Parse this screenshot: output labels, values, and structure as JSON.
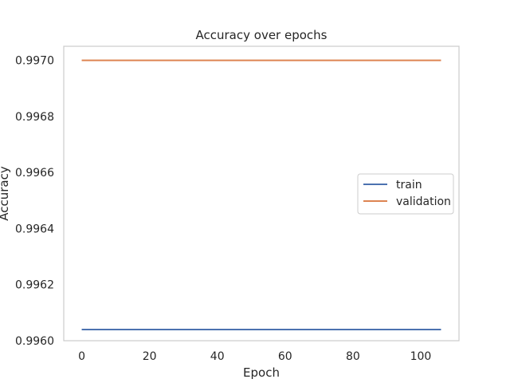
{
  "chart_data": {
    "type": "line",
    "title": "Accuracy over epochs",
    "xlabel": "Epoch",
    "ylabel": "Accuracy",
    "xlim": [
      -5.3,
      111.3
    ],
    "ylim": [
      0.996,
      0.99705
    ],
    "xticks": [
      0,
      20,
      40,
      60,
      80,
      100
    ],
    "xtick_labels": [
      "0",
      "20",
      "40",
      "60",
      "80",
      "100"
    ],
    "yticks": [
      0.996,
      0.9962,
      0.9964,
      0.9966,
      0.9968,
      0.997
    ],
    "ytick_labels": [
      "0.9960",
      "0.9962",
      "0.9964",
      "0.9966",
      "0.9968",
      "0.9970"
    ],
    "grid": false,
    "legend_position": "center-right",
    "series": [
      {
        "name": "train",
        "color": "#4c72b0",
        "x": [
          0,
          106
        ],
        "y": [
          0.99604,
          0.99604
        ]
      },
      {
        "name": "validation",
        "color": "#dd8452",
        "x": [
          0,
          106
        ],
        "y": [
          0.997,
          0.997
        ]
      }
    ]
  }
}
